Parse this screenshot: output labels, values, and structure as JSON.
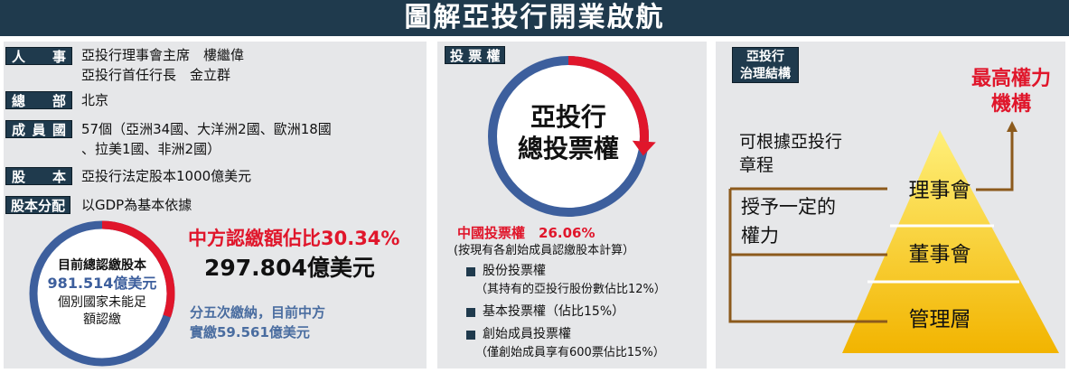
{
  "title": "圖解亞投行開業啟航",
  "info": {
    "personnel": {
      "label_chars": [
        "人",
        "事"
      ],
      "lines": [
        "亞投行理事會主席　樓繼偉",
        "亞投行首任行長　金立群"
      ]
    },
    "hq": {
      "label_chars": [
        "總",
        "部"
      ],
      "value": "北京"
    },
    "members": {
      "label_chars": [
        "成",
        "員",
        "國"
      ],
      "lines": [
        "57個（亞洲34國、大洋洲2國、歐洲18國",
        "、拉美1國、非洲2國）"
      ]
    },
    "capital": {
      "label_chars": [
        "股",
        "本"
      ],
      "value": "亞投行法定股本1000億美元"
    },
    "allocation": {
      "label": "股本分配",
      "value": "以GDP為基本依據"
    }
  },
  "subscription": {
    "circle_lines": [
      "目前總認繳股本",
      "981.514億美元",
      "個別國家未能足",
      "額認繳"
    ],
    "china_share": 30.34,
    "headline": "中方認繳額佔比30.34%",
    "amount": "297.804億美元",
    "note_lines": [
      "分五次繳納，目前中方",
      "實繳59.561億美元"
    ]
  },
  "voting": {
    "label": "投 票 權",
    "ring_lines": [
      "亞投行",
      "總投票權"
    ],
    "china_share": 26.06,
    "china_label": "中國投票權　26.06%",
    "basis": "(按現有各創始成員認繳股本計算）",
    "items": [
      {
        "name": "股份投票權",
        "detail": "（其持有的亞投行股份數佔比12%）"
      },
      {
        "name": "基本投票權（佔比15%）",
        "detail": ""
      },
      {
        "name": "創始成員投票權",
        "detail": "（僅創始成員享有600票佔比15%）"
      }
    ]
  },
  "governance": {
    "label_lines": [
      "亞投行",
      "治理結構"
    ],
    "top_authority_lines": [
      "最高權力",
      "機構"
    ],
    "charter_lines": [
      "可根據亞投行",
      "章程"
    ],
    "grant_lines": [
      "授予一定的",
      "權力"
    ],
    "tiers": [
      "理事會",
      "董事會",
      "管理層"
    ]
  },
  "colors": {
    "navy": "#1f3a4d",
    "red": "#e0162b",
    "blue": "#3d5f9d",
    "panel": "#e6e7e9",
    "arrow": "#8c5a1c",
    "pyramid_light": "#fff07a",
    "pyramid_dark": "#f2b400"
  }
}
